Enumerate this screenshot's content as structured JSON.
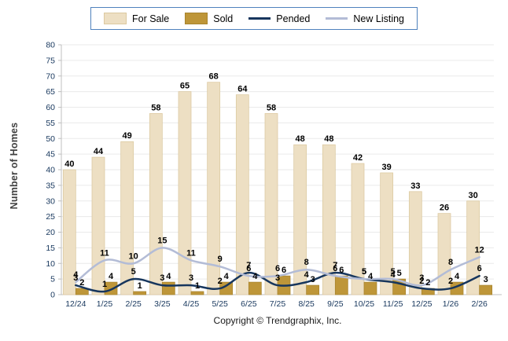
{
  "chart_data": {
    "type": "bar",
    "title": "",
    "xlabel": "",
    "ylabel": "Number of Homes",
    "ylim": [
      0,
      80
    ],
    "ytick_step": 5,
    "grid": true,
    "legend_position": "top",
    "categories": [
      "12/24",
      "1/25",
      "2/25",
      "3/25",
      "4/25",
      "5/25",
      "6/25",
      "7/25",
      "8/25",
      "9/25",
      "10/25",
      "11/25",
      "12/25",
      "1/26",
      "2/26"
    ],
    "series": [
      {
        "name": "For Sale",
        "type": "bar",
        "color": "#EDDFC3",
        "border": "#DCC9A0",
        "values": [
          40,
          44,
          49,
          58,
          65,
          68,
          64,
          58,
          48,
          48,
          42,
          39,
          33,
          26,
          30
        ]
      },
      {
        "name": "Sold",
        "type": "bar",
        "color": "#BE9639",
        "border": "#A8842F",
        "values": [
          2,
          4,
          1,
          4,
          1,
          4,
          4,
          6,
          3,
          6,
          4,
          5,
          2,
          4,
          3
        ]
      },
      {
        "name": "Pended",
        "type": "line",
        "color": "#17365D",
        "values": [
          3,
          1,
          5,
          3,
          3,
          2,
          7,
          3,
          4,
          7,
          5,
          4,
          2,
          2,
          6
        ]
      },
      {
        "name": "New Listing",
        "type": "line",
        "color": "#B3BCD6",
        "values": [
          4,
          11,
          10,
          15,
          11,
          9,
          6,
          6,
          8,
          6,
          5,
          5,
          3,
          8,
          12
        ]
      }
    ],
    "axis_color": "#BFBFBF",
    "grid_color": "#EAEAEA",
    "tick_label_color": "#17375D",
    "value_label_color": "#000000"
  },
  "footer": {
    "copyright": "Copyright © Trendgraphix, Inc."
  }
}
